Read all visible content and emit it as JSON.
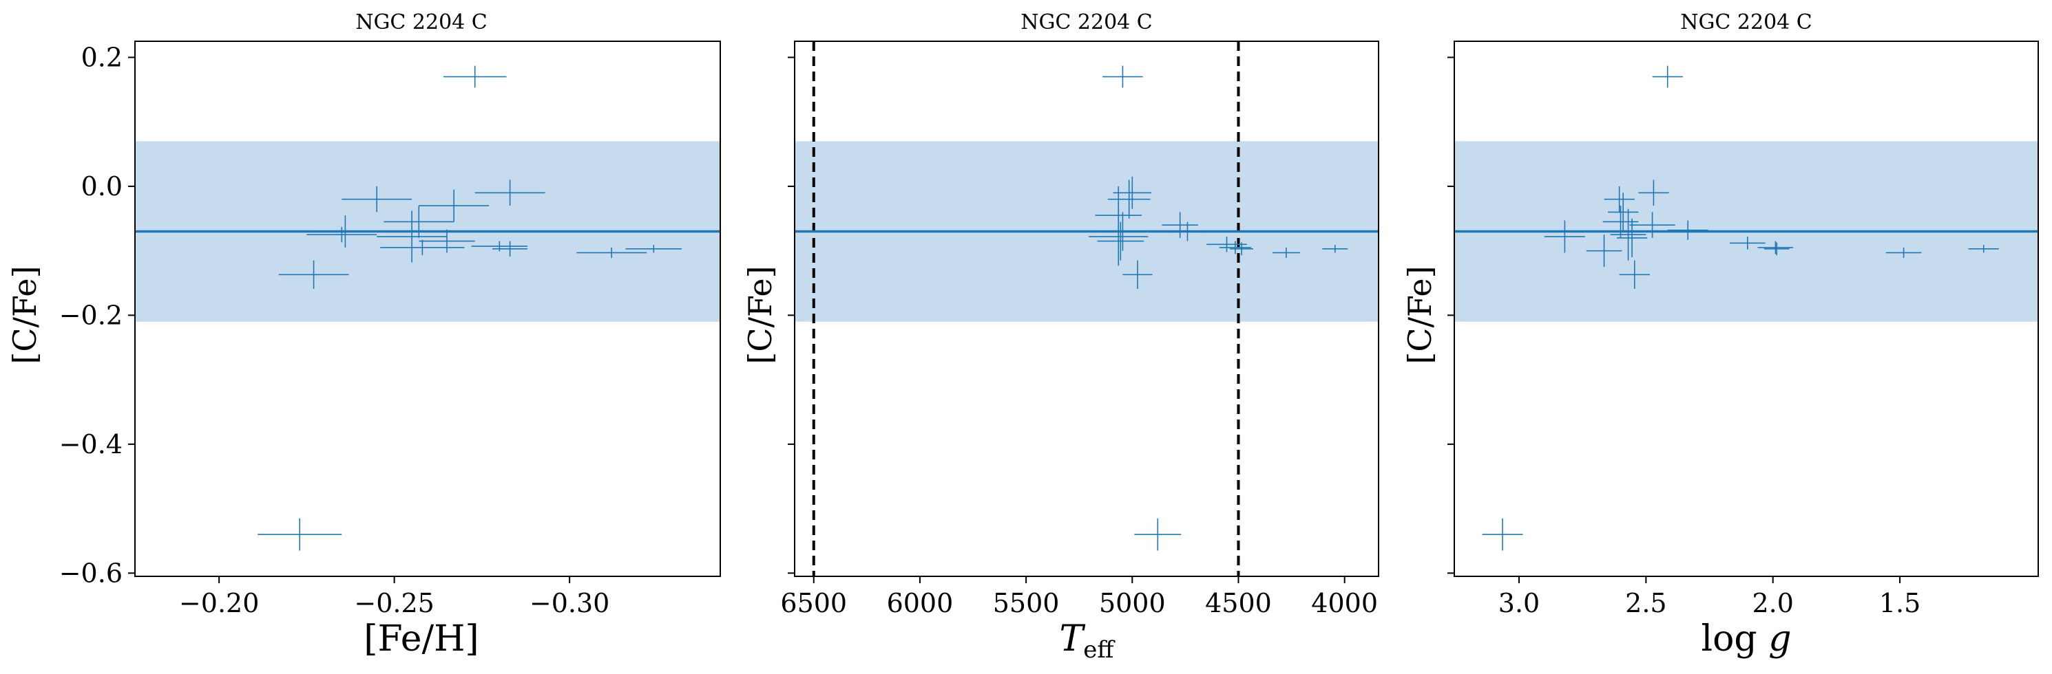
{
  "colors": {
    "accent": "#1f77b4",
    "band": "#c6dcee",
    "guide": "#000000"
  },
  "chart_data": [
    {
      "type": "scatter",
      "title": "NGC 2204 C",
      "xlabel": "[Fe/H]",
      "ylabel": "[C/Fe]",
      "xlim": [
        -0.176,
        -0.343
      ],
      "ylim": [
        -0.605,
        0.225
      ],
      "x_inverted": true,
      "xticks": [
        -0.2,
        -0.25,
        -0.3
      ],
      "xtick_labels": [
        "−0.20",
        "−0.25",
        "−0.30"
      ],
      "yticks": [
        0.2,
        0.0,
        -0.2,
        -0.4,
        -0.6
      ],
      "ytick_labels": [
        "0.2",
        "0.0",
        "−0.2",
        "−0.4",
        "−0.6"
      ],
      "show_ytick_labels": true,
      "mean_line": -0.07,
      "band": [
        -0.21,
        0.07
      ],
      "vlines": [],
      "points": [
        {
          "x": -0.223,
          "y": -0.54,
          "xerr": 0.012,
          "yerr": 0.025
        },
        {
          "x": -0.273,
          "y": 0.17,
          "xerr": 0.009,
          "yerr": 0.017
        },
        {
          "x": -0.245,
          "y": -0.02,
          "xerr": 0.01,
          "yerr": 0.02
        },
        {
          "x": -0.283,
          "y": -0.01,
          "xerr": 0.01,
          "yerr": 0.02
        },
        {
          "x": -0.267,
          "y": -0.03,
          "xerr": 0.01,
          "yerr": 0.025
        },
        {
          "x": -0.257,
          "y": -0.055,
          "xerr": 0.01,
          "yerr": 0.025
        },
        {
          "x": -0.255,
          "y": -0.078,
          "xerr": 0.01,
          "yerr": 0.04
        },
        {
          "x": -0.236,
          "y": -0.07,
          "xerr": 0.01,
          "yerr": 0.025
        },
        {
          "x": -0.235,
          "y": -0.075,
          "xerr": 0.01,
          "yerr": 0.012
        },
        {
          "x": -0.265,
          "y": -0.085,
          "xerr": 0.008,
          "yerr": 0.018
        },
        {
          "x": -0.227,
          "y": -0.137,
          "xerr": 0.01,
          "yerr": 0.022
        },
        {
          "x": -0.258,
          "y": -0.095,
          "xerr": 0.012,
          "yerr": 0.012
        },
        {
          "x": -0.28,
          "y": -0.093,
          "xerr": 0.008,
          "yerr": 0.008
        },
        {
          "x": -0.283,
          "y": -0.097,
          "xerr": 0.005,
          "yerr": 0.012
        },
        {
          "x": -0.312,
          "y": -0.103,
          "xerr": 0.01,
          "yerr": 0.008
        },
        {
          "x": -0.324,
          "y": -0.097,
          "xerr": 0.008,
          "yerr": 0.006
        }
      ]
    },
    {
      "type": "scatter",
      "title": "NGC 2204 C",
      "xlabel": "T_eff",
      "ylabel": "[C/Fe]",
      "xlim": [
        6590,
        3840
      ],
      "ylim": [
        -0.605,
        0.225
      ],
      "x_inverted": true,
      "xticks": [
        6500,
        6000,
        5500,
        5000,
        4500,
        4000
      ],
      "xtick_labels": [
        "6500",
        "6000",
        "5500",
        "5000",
        "4500",
        "4000"
      ],
      "yticks": [
        0.2,
        0.0,
        -0.2,
        -0.4,
        -0.6
      ],
      "ytick_labels": [],
      "show_ytick_labels": false,
      "mean_line": -0.07,
      "band": [
        -0.21,
        0.07
      ],
      "vlines": [
        6500,
        4500
      ],
      "points": [
        {
          "x": 4880,
          "y": -0.54,
          "xerr": 110,
          "yerr": 0.025
        },
        {
          "x": 5045,
          "y": 0.17,
          "xerr": 95,
          "yerr": 0.017
        },
        {
          "x": 5015,
          "y": -0.02,
          "xerr": 100,
          "yerr": 0.03
        },
        {
          "x": 5000,
          "y": -0.01,
          "xerr": 90,
          "yerr": 0.025
        },
        {
          "x": 5065,
          "y": -0.045,
          "xerr": 110,
          "yerr": 0.045
        },
        {
          "x": 5045,
          "y": -0.07,
          "xerr": 110,
          "yerr": 0.03
        },
        {
          "x": 5065,
          "y": -0.078,
          "xerr": 140,
          "yerr": 0.045
        },
        {
          "x": 5055,
          "y": -0.085,
          "xerr": 110,
          "yerr": 0.03
        },
        {
          "x": 4975,
          "y": -0.137,
          "xerr": 70,
          "yerr": 0.022
        },
        {
          "x": 4775,
          "y": -0.06,
          "xerr": 85,
          "yerr": 0.02
        },
        {
          "x": 4740,
          "y": -0.07,
          "xerr": 80,
          "yerr": 0.015
        },
        {
          "x": 4555,
          "y": -0.09,
          "xerr": 95,
          "yerr": 0.012
        },
        {
          "x": 4515,
          "y": -0.095,
          "xerr": 75,
          "yerr": 0.01
        },
        {
          "x": 4485,
          "y": -0.097,
          "xerr": 55,
          "yerr": 0.01
        },
        {
          "x": 4275,
          "y": -0.103,
          "xerr": 65,
          "yerr": 0.008
        },
        {
          "x": 4045,
          "y": -0.097,
          "xerr": 60,
          "yerr": 0.006
        }
      ]
    },
    {
      "type": "scatter",
      "title": "NGC 2204 C",
      "xlabel": "log g",
      "ylabel": "[C/Fe]",
      "xlim": [
        3.255,
        0.955
      ],
      "ylim": [
        -0.605,
        0.225
      ],
      "x_inverted": true,
      "xticks": [
        3.0,
        2.5,
        2.0,
        1.5
      ],
      "xtick_labels": [
        "3.0",
        "2.5",
        "2.0",
        "1.5"
      ],
      "yticks": [
        0.2,
        0.0,
        -0.2,
        -0.4,
        -0.6
      ],
      "ytick_labels": [],
      "show_ytick_labels": false,
      "mean_line": -0.07,
      "band": [
        -0.21,
        0.07
      ],
      "vlines": [],
      "points": [
        {
          "x": 3.065,
          "y": -0.54,
          "xerr": 0.08,
          "yerr": 0.025
        },
        {
          "x": 2.415,
          "y": 0.17,
          "xerr": 0.06,
          "yerr": 0.017
        },
        {
          "x": 2.47,
          "y": -0.01,
          "xerr": 0.06,
          "yerr": 0.02
        },
        {
          "x": 2.605,
          "y": -0.02,
          "xerr": 0.06,
          "yerr": 0.02
        },
        {
          "x": 2.59,
          "y": -0.04,
          "xerr": 0.06,
          "yerr": 0.03
        },
        {
          "x": 2.6,
          "y": -0.055,
          "xerr": 0.07,
          "yerr": 0.025
        },
        {
          "x": 2.475,
          "y": -0.06,
          "xerr": 0.09,
          "yerr": 0.02
        },
        {
          "x": 2.335,
          "y": -0.068,
          "xerr": 0.08,
          "yerr": 0.015
        },
        {
          "x": 2.82,
          "y": -0.078,
          "xerr": 0.08,
          "yerr": 0.025
        },
        {
          "x": 2.57,
          "y": -0.075,
          "xerr": 0.07,
          "yerr": 0.04
        },
        {
          "x": 2.555,
          "y": -0.08,
          "xerr": 0.06,
          "yerr": 0.03
        },
        {
          "x": 2.665,
          "y": -0.1,
          "xerr": 0.07,
          "yerr": 0.025
        },
        {
          "x": 2.545,
          "y": -0.137,
          "xerr": 0.06,
          "yerr": 0.022
        },
        {
          "x": 2.1,
          "y": -0.088,
          "xerr": 0.07,
          "yerr": 0.01
        },
        {
          "x": 1.99,
          "y": -0.095,
          "xerr": 0.07,
          "yerr": 0.01
        },
        {
          "x": 1.985,
          "y": -0.097,
          "xerr": 0.05,
          "yerr": 0.01
        },
        {
          "x": 1.485,
          "y": -0.103,
          "xerr": 0.07,
          "yerr": 0.008
        },
        {
          "x": 1.17,
          "y": -0.097,
          "xerr": 0.06,
          "yerr": 0.006
        }
      ]
    }
  ]
}
